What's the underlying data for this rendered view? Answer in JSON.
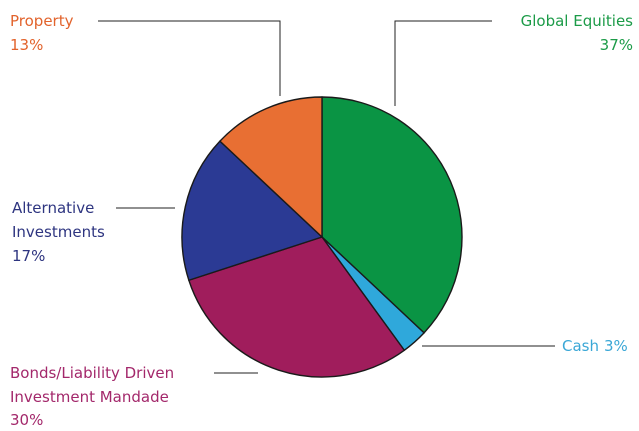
{
  "chart_data": {
    "type": "pie",
    "title": "",
    "start": "12 o'clock",
    "direction": "clockwise",
    "legend": "none",
    "slices": [
      {
        "key": "global",
        "name": "Global Equities",
        "value": 37,
        "label": "37%",
        "color": "#0a9444",
        "label_color": "#1c9b48"
      },
      {
        "key": "cash",
        "name": "Cash",
        "value": 3,
        "label": "3%",
        "color": "#2fa8db",
        "label_color": "#3aa7d6"
      },
      {
        "key": "bonds",
        "name": "Bonds/Liability Driven Investment Mandade",
        "name_lines": [
          "Bonds/Liability Driven",
          "Investment Mandade"
        ],
        "value": 30,
        "label": "30%",
        "color": "#a01d5c",
        "label_color": "#a3286b"
      },
      {
        "key": "alt",
        "name": "Alternative Investments",
        "name_lines": [
          "Alternative",
          "Investments"
        ],
        "value": 17,
        "label": "17%",
        "color": "#2b3a94",
        "label_color": "#2e3580"
      },
      {
        "key": "property",
        "name": "Property",
        "value": 13,
        "label": "13%",
        "color": "#e86f33",
        "label_color": "#e2632c"
      }
    ]
  }
}
